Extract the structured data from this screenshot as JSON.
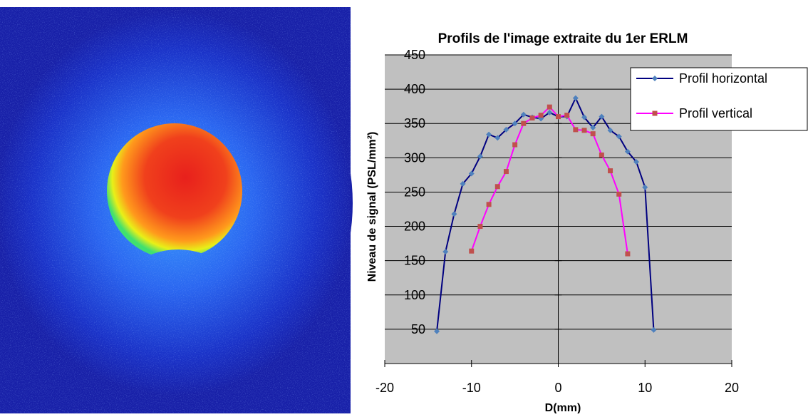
{
  "chart_data": {
    "type": "line",
    "title": "Profils de l'image extraite du 1er ERLM",
    "x_label": "D(mm)",
    "y_label": "Niveau de signal (PSL/mm²)",
    "xlim": [
      -20,
      20
    ],
    "xticks": [
      -20,
      -10,
      0,
      10,
      20
    ],
    "ylim": [
      0,
      450
    ],
    "yticks": [
      50,
      100,
      150,
      200,
      250,
      300,
      350,
      400,
      450
    ],
    "grid": true,
    "legend": "upper right",
    "series": [
      {
        "name": "Profil horizontal",
        "color": "#000080",
        "marker_color": "#4f81bd",
        "x": [
          -14,
          -13,
          -12,
          -11,
          -10,
          -9,
          -8,
          -7,
          -6,
          -5,
          -4,
          -3,
          -2,
          -1,
          0,
          1,
          2,
          3,
          4,
          5,
          6,
          7,
          8,
          9,
          10,
          11
        ],
        "values": [
          47,
          163,
          218,
          262,
          277,
          302,
          334,
          329,
          341,
          350,
          363,
          359,
          357,
          366,
          360,
          360,
          387,
          359,
          344,
          360,
          340,
          331,
          309,
          294,
          257,
          49
        ]
      },
      {
        "name": "Profil vertical",
        "color": "#ff00ff",
        "marker_color": "#c0504d",
        "x": [
          -10,
          -9,
          -8,
          -7,
          -6,
          -5,
          -4,
          -3,
          -2,
          -1,
          0,
          1,
          2,
          3,
          4,
          5,
          6,
          7,
          8
        ],
        "values": [
          164,
          200,
          232,
          258,
          280,
          319,
          350,
          358,
          362,
          374,
          360,
          362,
          341,
          340,
          335,
          304,
          281,
          247,
          160
        ]
      }
    ]
  }
}
